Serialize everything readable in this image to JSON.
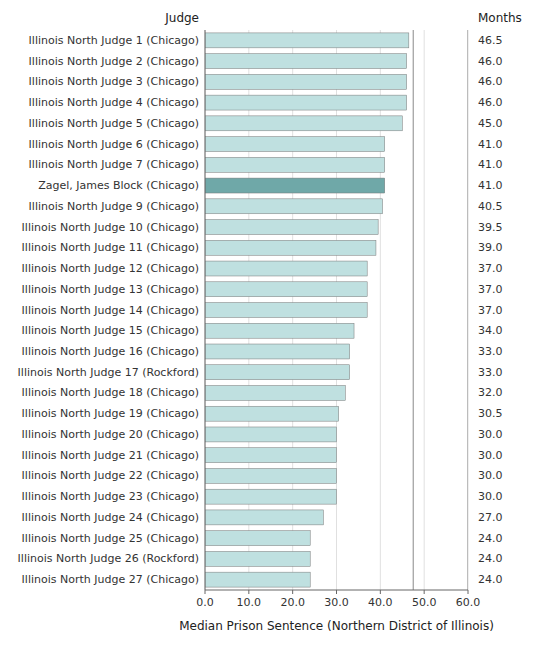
{
  "chart_data": {
    "type": "bar",
    "orientation": "horizontal",
    "categories": [
      "Illinois North Judge 1 (Chicago)",
      "Illinois North Judge 2 (Chicago)",
      "Illinois North Judge 3 (Chicago)",
      "Illinois North Judge 4 (Chicago)",
      "Illinois North Judge 5 (Chicago)",
      "Illinois North Judge 6 (Chicago)",
      "Illinois North Judge 7 (Chicago)",
      "Zagel, James Block (Chicago)",
      "Illinois North Judge 9 (Chicago)",
      "Illinois North Judge 10 (Chicago)",
      "Illinois North Judge 11 (Chicago)",
      "Illinois North Judge 12 (Chicago)",
      "Illinois North Judge 13 (Chicago)",
      "Illinois North Judge 14 (Chicago)",
      "Illinois North Judge 15 (Chicago)",
      "Illinois North Judge 16 (Chicago)",
      "Illinois North Judge 17 (Rockford)",
      "Illinois North Judge 18 (Chicago)",
      "Illinois North Judge 19 (Chicago)",
      "Illinois North Judge 20 (Chicago)",
      "Illinois North Judge 21 (Chicago)",
      "Illinois North Judge 22 (Chicago)",
      "Illinois North Judge 23 (Chicago)",
      "Illinois North Judge 24 (Chicago)",
      "Illinois North Judge 25 (Chicago)",
      "Illinois North Judge 26 (Rockford)",
      "Illinois North Judge 27 (Chicago)"
    ],
    "values": [
      46.5,
      46.0,
      46.0,
      46.0,
      45.0,
      41.0,
      41.0,
      41.0,
      40.5,
      39.5,
      39.0,
      37.0,
      37.0,
      37.0,
      34.0,
      33.0,
      33.0,
      32.0,
      30.5,
      30.0,
      30.0,
      30.0,
      30.0,
      27.0,
      24.0,
      24.0,
      24.0
    ],
    "value_labels": [
      "46.5",
      "46.0",
      "46.0",
      "46.0",
      "45.0",
      "41.0",
      "41.0",
      "41.0",
      "40.5",
      "39.5",
      "39.0",
      "37.0",
      "37.0",
      "37.0",
      "34.0",
      "33.0",
      "33.0",
      "32.0",
      "30.5",
      "30.0",
      "30.0",
      "30.0",
      "30.0",
      "27.0",
      "24.0",
      "24.0",
      "24.0"
    ],
    "data_labels": true,
    "colors": [
      "#bfe0e0",
      "#bfe0e0",
      "#bfe0e0",
      "#bfe0e0",
      "#bfe0e0",
      "#bfe0e0",
      "#bfe0e0",
      "#6fa8a8",
      "#bfe0e0",
      "#bfe0e0",
      "#bfe0e0",
      "#bfe0e0",
      "#bfe0e0",
      "#bfe0e0",
      "#bfe0e0",
      "#bfe0e0",
      "#bfe0e0",
      "#bfe0e0",
      "#bfe0e0",
      "#bfe0e0",
      "#bfe0e0",
      "#bfe0e0",
      "#bfe0e0",
      "#bfe0e0",
      "#bfe0e0",
      "#bfe0e0",
      "#bfe0e0"
    ],
    "xlabel": "Median Prison Sentence (Northern District of Illinois)",
    "ylabel": "Judge",
    "annotations": [
      "Months"
    ],
    "xlim": [
      0,
      60
    ],
    "xticks": [
      {
        "value": 0,
        "label": "0.0"
      },
      {
        "value": 10,
        "label": "10.0"
      },
      {
        "value": 20,
        "label": "20.0"
      },
      {
        "value": 30,
        "label": "30.0"
      },
      {
        "value": 40,
        "label": "40.0"
      },
      {
        "value": 50,
        "label": "50.0"
      },
      {
        "value": 60,
        "label": "60.0"
      }
    ],
    "reference_lines": [
      47.5,
      60.0
    ],
    "grid": true
  }
}
